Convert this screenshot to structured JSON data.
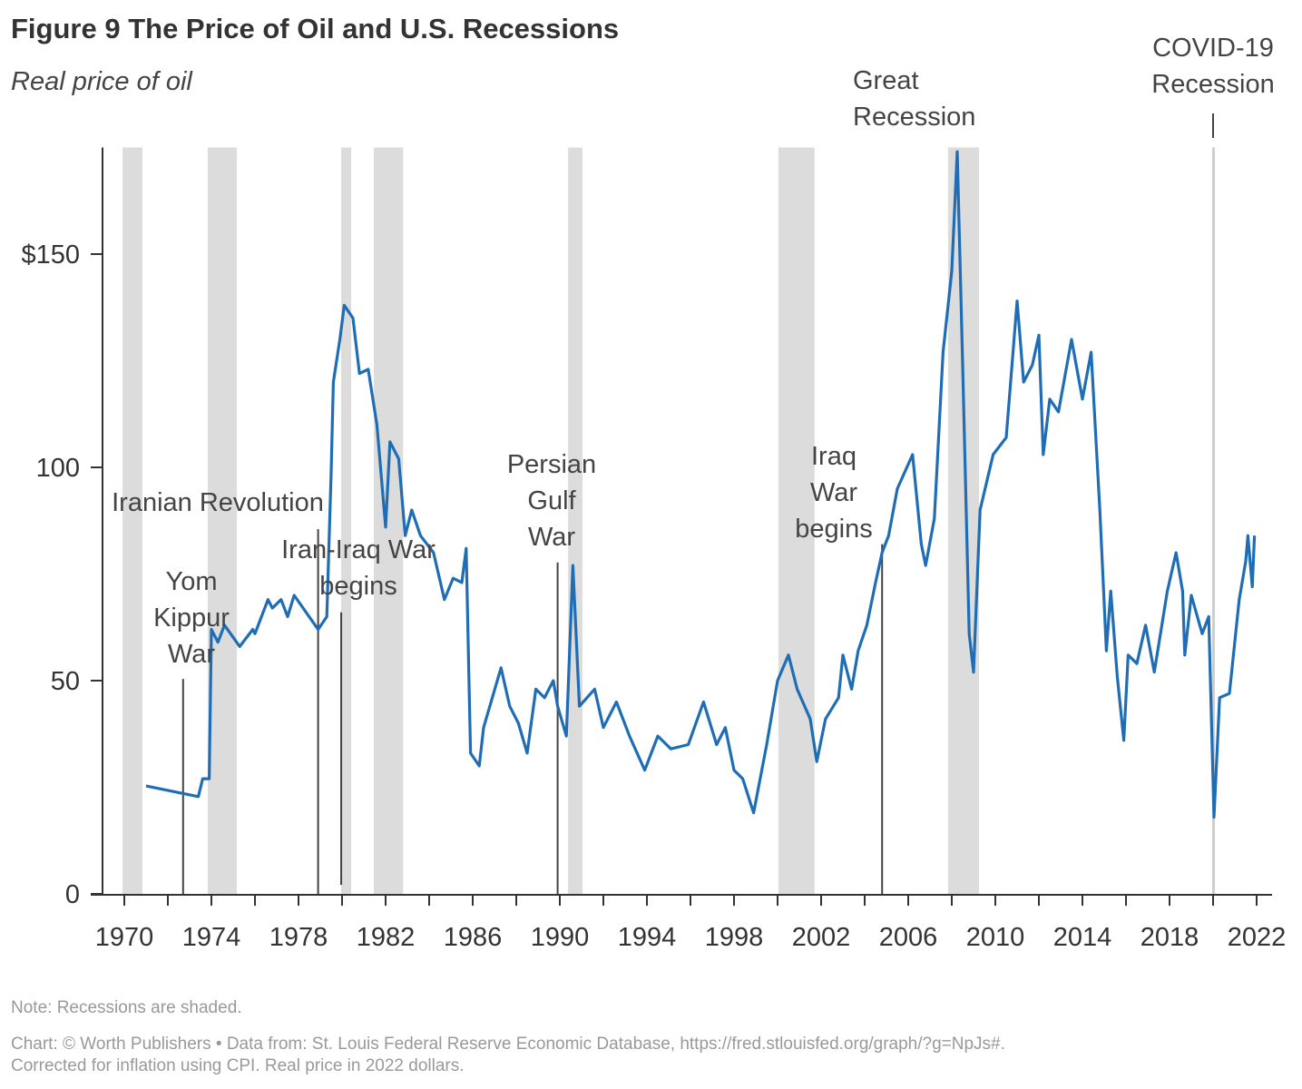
{
  "title": "Figure 9 The Price of Oil and U.S. Recessions",
  "subtitle": "Real price of oil",
  "note": "Note: Recessions are shaded.",
  "source_line1": "Chart: © Worth Publishers • Data from: St. Louis Federal Reserve Economic Database, https://fred.stlouisfed.org/graph/?g=NpJs#.",
  "source_line2": "Corrected for inflation using CPI. Real price in 2022 dollars.",
  "colors": {
    "line": "#1f6db5",
    "recession": "#dcdcdc",
    "axis": "#333333",
    "annotation_line": "#444444",
    "covid_line": "#cccccc"
  },
  "chart_data": {
    "type": "line",
    "title": "Figure 9 The Price of Oil and U.S. Recessions",
    "ylabel": "Real price of oil",
    "xlim": [
      1969.0,
      2023.0
    ],
    "ylim": [
      0,
      175
    ],
    "x_ticks_minor_every": 2,
    "x_tick_labels": [
      "1970",
      "1974",
      "1978",
      "1982",
      "1986",
      "1990",
      "1994",
      "1998",
      "2002",
      "2006",
      "2010",
      "2014",
      "2018",
      "2022"
    ],
    "y_ticks": [
      0,
      50,
      100,
      150
    ],
    "y_tick_labels": [
      "0",
      "50",
      "100",
      "$150"
    ],
    "grid": false,
    "series": [
      {
        "x": [
          1971.0,
          1973.4,
          1973.6,
          1973.9,
          1974.0,
          1974.3,
          1974.6,
          1975.3,
          1975.9,
          1976.0,
          1976.6,
          1976.8,
          1977.2,
          1977.5,
          1977.8,
          1978.9,
          1979.3,
          1979.5,
          1979.6,
          1979.9,
          1980.1,
          1980.5,
          1980.8,
          1981.2,
          1981.6,
          1982.0,
          1982.2,
          1982.6,
          1982.9,
          1983.2,
          1983.6,
          1984.2,
          1984.7,
          1985.1,
          1985.5,
          1985.7,
          1985.9,
          1986.3,
          1986.5,
          1986.9,
          1987.3,
          1987.7,
          1988.1,
          1988.5,
          1988.9,
          1989.3,
          1989.7,
          1989.9,
          1990.3,
          1990.6,
          1990.9,
          1991.6,
          1992.0,
          1992.6,
          1993.2,
          1993.9,
          1994.5,
          1995.1,
          1995.9,
          1996.6,
          1997.2,
          1997.6,
          1998.0,
          1998.4,
          1998.9,
          1999.5,
          2000.0,
          2000.5,
          2000.9,
          2001.5,
          2001.8,
          2002.2,
          2002.8,
          2003.0,
          2003.4,
          2003.7,
          2004.1,
          2004.5,
          2004.8,
          2005.1,
          2005.5,
          2006.2,
          2006.6,
          2006.8,
          2007.2,
          2007.6,
          2008.0,
          2008.25,
          2008.5,
          2008.8,
          2009.0,
          2009.3,
          2009.9,
          2010.5,
          2011.0,
          2011.3,
          2011.7,
          2012.0,
          2012.2,
          2012.5,
          2012.9,
          2013.5,
          2014.0,
          2014.4,
          2014.8,
          2015.1,
          2015.3,
          2015.6,
          2015.9,
          2016.1,
          2016.5,
          2016.9,
          2017.3,
          2017.9,
          2018.3,
          2018.6,
          2018.7,
          2019.0,
          2019.5,
          2019.8,
          2020.04,
          2020.3,
          2020.75,
          2021.2,
          2021.5,
          2021.6,
          2021.8,
          2021.9
        ],
        "y": [
          25.3,
          22.8,
          27,
          27,
          62,
          59,
          63,
          58,
          62,
          61,
          69,
          67,
          69,
          65,
          70,
          62,
          65,
          99,
          120,
          130,
          138,
          135,
          122,
          123,
          110,
          86,
          106,
          102,
          84,
          90,
          84,
          80,
          69,
          74,
          73,
          81,
          33,
          30,
          39,
          46,
          53,
          44,
          40,
          33,
          48,
          46,
          50,
          44,
          37,
          77,
          44,
          48,
          39,
          45,
          37,
          29,
          37,
          34,
          35,
          45,
          35,
          39,
          29,
          27,
          19,
          35,
          50,
          56,
          48,
          41,
          31,
          41,
          46,
          56,
          48,
          57,
          63,
          73,
          80,
          84,
          95,
          103,
          82,
          77,
          88,
          127,
          146,
          174,
          124,
          61,
          52,
          90,
          103,
          107,
          139,
          120,
          124,
          131,
          103,
          116,
          113,
          130,
          116,
          127,
          90,
          57,
          71,
          51,
          36,
          56,
          54,
          63,
          52,
          71,
          80,
          71,
          56,
          70,
          61,
          65,
          18,
          46,
          47,
          69,
          78,
          84,
          72,
          84
        ]
      }
    ],
    "recessions": [
      [
        1969.92,
        1970.83
      ],
      [
        1973.83,
        1975.17
      ],
      [
        1979.96,
        1980.42
      ],
      [
        1981.46,
        1982.8
      ],
      [
        1990.38,
        1991.04
      ],
      [
        2000.04,
        2001.7
      ],
      [
        2007.83,
        2009.25
      ],
      [
        2019.96,
        2020.08
      ]
    ],
    "annotations": [
      {
        "label": "Iranian Revolution",
        "x": 1978.9,
        "top": 85.5
      },
      {
        "label": "Yom Kippur War",
        "lines": [
          "Yom",
          "Kippur",
          "War"
        ],
        "x": 1972.7,
        "top": 50.4
      },
      {
        "label": "Iran-Iraq War begins",
        "lines": [
          "Iran-Iraq War",
          "begins"
        ],
        "x": 1979.96,
        "top": 66
      },
      {
        "label": "Persian Gulf War",
        "lines": [
          "Persian",
          "Gulf",
          "War"
        ],
        "x": 1989.9,
        "top": 77.7
      },
      {
        "label": "Iraq War begins",
        "lines": [
          "Iraq",
          "War",
          "begins"
        ],
        "x": 2004.8,
        "top": 82
      },
      {
        "label": "Great Recession",
        "lines": [
          "Great",
          "Recession"
        ]
      },
      {
        "label": "COVID-19 Recession",
        "lines": [
          "COVID-19",
          "Recession"
        ],
        "x": 2020.0
      }
    ]
  }
}
